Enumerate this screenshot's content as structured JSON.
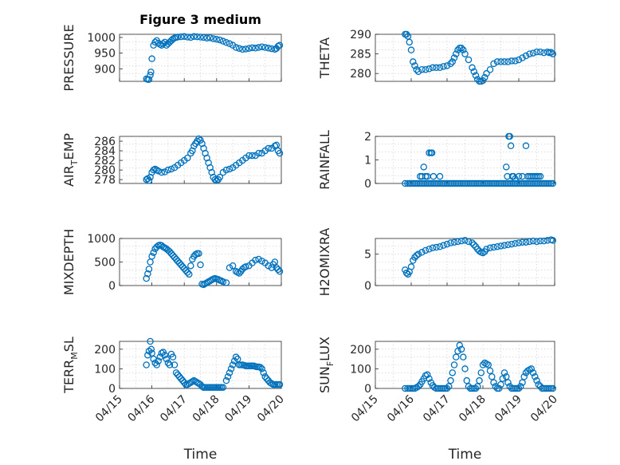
{
  "chart_data": [
    {
      "id": "pressure",
      "type": "scatter",
      "title": "Figure 3 medium",
      "ylabel": {
        "main": "PRESSURE",
        "sub": "",
        "tail": ""
      },
      "ylim": [
        860,
        1010
      ],
      "yticks": [
        900,
        950,
        1000
      ],
      "yticklabels": [
        "900",
        "950",
        "1000"
      ],
      "xlim": [
        0,
        5
      ],
      "xticklabels": [],
      "x": [
        0.83,
        0.87,
        0.91,
        0.95,
        0.97,
        1.0,
        1.05,
        1.1,
        1.15,
        1.2,
        1.25,
        1.3,
        1.35,
        1.4,
        1.45,
        1.5,
        1.55,
        1.6,
        1.65,
        1.7,
        1.75,
        1.8,
        1.9,
        2.0,
        2.1,
        2.2,
        2.3,
        2.4,
        2.5,
        2.6,
        2.7,
        2.8,
        2.9,
        3.0,
        3.1,
        3.2,
        3.3,
        3.4,
        3.5,
        3.6,
        3.7,
        3.8,
        3.9,
        4.0,
        4.1,
        4.2,
        4.3,
        4.4,
        4.5,
        4.6,
        4.7,
        4.8,
        4.85,
        4.9,
        4.95
      ],
      "y": [
        868,
        866,
        866,
        880,
        890,
        932,
        975,
        985,
        990,
        982,
        978,
        975,
        980,
        985,
        975,
        980,
        985,
        990,
        995,
        998,
        1000,
        1001,
        1002,
        1003,
        1001,
        1000,
        1003,
        1002,
        1001,
        1000,
        998,
        999,
        996,
        994,
        992,
        988,
        984,
        980,
        975,
        968,
        965,
        962,
        963,
        965,
        967,
        966,
        968,
        970,
        968,
        966,
        964,
        962,
        965,
        972,
        975
      ]
    },
    {
      "id": "theta",
      "type": "scatter",
      "title": "",
      "ylabel": {
        "main": "THETA",
        "sub": "",
        "tail": ""
      },
      "ylim": [
        278,
        290
      ],
      "yticks": [
        280,
        285,
        290
      ],
      "yticklabels": [
        "280",
        "285",
        "290"
      ],
      "xlim": [
        0,
        5
      ],
      "xticklabels": [],
      "x": [
        0.83,
        0.87,
        0.91,
        0.95,
        1.0,
        1.05,
        1.1,
        1.15,
        1.2,
        1.3,
        1.4,
        1.5,
        1.6,
        1.7,
        1.8,
        1.9,
        2.0,
        2.1,
        2.15,
        2.2,
        2.25,
        2.3,
        2.35,
        2.4,
        2.45,
        2.5,
        2.6,
        2.7,
        2.75,
        2.8,
        2.85,
        2.9,
        2.95,
        3.0,
        3.05,
        3.1,
        3.2,
        3.3,
        3.4,
        3.5,
        3.6,
        3.7,
        3.8,
        3.9,
        4.0,
        4.1,
        4.2,
        4.3,
        4.4,
        4.5,
        4.6,
        4.7,
        4.8,
        4.85,
        4.9,
        4.95
      ],
      "y": [
        290,
        290,
        289.5,
        288,
        286,
        283,
        282,
        281,
        280.5,
        281,
        281,
        281.2,
        281.5,
        281.5,
        281.5,
        281.8,
        282,
        282.5,
        283,
        284,
        285,
        286,
        286.5,
        286.5,
        286,
        285,
        283.5,
        281.5,
        280.5,
        279.5,
        278.5,
        278,
        278,
        278.2,
        279,
        280,
        281,
        282.5,
        283,
        283,
        283,
        283,
        283.2,
        283.2,
        283.5,
        284,
        284.5,
        285,
        285.2,
        285.5,
        285.5,
        285.3,
        285.5,
        285.3,
        285.4,
        285
      ]
    },
    {
      "id": "airtemp",
      "type": "scatter",
      "title": "",
      "ylabel": {
        "main": "AIR",
        "sub": "T",
        "tail": "EMP"
      },
      "ylim": [
        277.2,
        287
      ],
      "yticks": [
        278,
        280,
        282,
        284,
        286
      ],
      "yticklabels": [
        "278",
        "280",
        "282",
        "284",
        "286"
      ],
      "xlim": [
        0,
        5
      ],
      "xticklabels": [],
      "x": [
        0.83,
        0.87,
        0.91,
        0.95,
        1.0,
        1.05,
        1.1,
        1.15,
        1.2,
        1.3,
        1.4,
        1.5,
        1.6,
        1.7,
        1.8,
        1.9,
        2.0,
        2.1,
        2.2,
        2.25,
        2.3,
        2.35,
        2.4,
        2.45,
        2.5,
        2.55,
        2.6,
        2.65,
        2.7,
        2.75,
        2.8,
        2.85,
        2.9,
        2.95,
        3.0,
        3.05,
        3.1,
        3.2,
        3.3,
        3.4,
        3.5,
        3.6,
        3.7,
        3.8,
        3.9,
        4.0,
        4.1,
        4.2,
        4.3,
        4.4,
        4.5,
        4.6,
        4.7,
        4.8,
        4.85,
        4.9,
        4.95
      ],
      "y": [
        278,
        278.2,
        277.8,
        278.5,
        279.5,
        280,
        280.2,
        280,
        279.8,
        279.5,
        279.6,
        280,
        280.2,
        280.5,
        281,
        281.5,
        282,
        282.5,
        283.5,
        284,
        285,
        285.5,
        286,
        286.5,
        286.2,
        285.5,
        284.5,
        283.5,
        282.5,
        281.5,
        280.5,
        279.5,
        278.5,
        278,
        277.8,
        278,
        278.5,
        279.5,
        280,
        280.2,
        280.5,
        281,
        281.5,
        282,
        282.5,
        283,
        283,
        283,
        283.5,
        283.5,
        284,
        284.5,
        284.5,
        285,
        285.2,
        284,
        283.5
      ]
    },
    {
      "id": "rainfall",
      "type": "scatter",
      "title": "",
      "ylabel": {
        "main": "RAINFALL",
        "sub": "",
        "tail": ""
      },
      "ylim": [
        0,
        2
      ],
      "yticks": [
        0,
        1,
        2
      ],
      "yticklabels": [
        "0",
        "1",
        "2"
      ],
      "xlim": [
        0,
        5
      ],
      "xticklabels": [],
      "x": [
        0.83,
        0.9,
        0.95,
        1.0,
        1.05,
        1.1,
        1.15,
        1.2,
        1.25,
        1.3,
        1.35,
        1.4,
        1.45,
        1.5,
        1.55,
        1.6,
        1.65,
        1.7,
        1.75,
        1.8,
        1.85,
        1.9,
        1.95,
        2.0,
        2.05,
        2.1,
        2.15,
        2.2,
        2.25,
        2.3,
        2.35,
        2.4,
        2.45,
        2.5,
        2.55,
        2.6,
        2.65,
        2.7,
        2.75,
        2.8,
        2.85,
        2.9,
        2.95,
        3.0,
        3.05,
        3.1,
        3.15,
        3.2,
        3.25,
        3.3,
        3.35,
        3.4,
        3.45,
        3.5,
        3.55,
        3.6,
        3.65,
        3.7,
        3.75,
        3.8,
        3.85,
        3.9,
        3.95,
        4.0,
        4.05,
        4.1,
        4.15,
        4.2,
        4.25,
        4.3,
        4.35,
        4.4,
        4.45,
        4.5,
        4.55,
        4.6,
        4.65,
        4.7,
        4.75,
        4.8,
        4.85,
        4.9,
        4.95,
        1.25,
        1.3,
        1.35,
        1.4,
        1.45,
        1.5,
        1.55,
        1.58,
        1.62,
        1.8,
        3.65,
        3.68,
        3.72,
        3.75,
        3.78,
        3.82,
        3.85,
        3.9,
        4.0,
        4.1,
        4.2,
        4.25,
        4.3,
        4.35,
        4.4,
        4.45,
        4.5,
        4.55,
        4.6
      ],
      "y": [
        0,
        0,
        0,
        0,
        0,
        0,
        0,
        0,
        0,
        0,
        0,
        0,
        0,
        0,
        0,
        0,
        0,
        0,
        0,
        0,
        0,
        0,
        0,
        0,
        0,
        0,
        0,
        0,
        0,
        0,
        0,
        0,
        0,
        0,
        0,
        0,
        0,
        0,
        0,
        0,
        0,
        0,
        0,
        0,
        0,
        0,
        0,
        0,
        0,
        0,
        0,
        0,
        0,
        0,
        0,
        0,
        0,
        0,
        0,
        0,
        0,
        0,
        0,
        0,
        0,
        0,
        0,
        0,
        0,
        0,
        0,
        0,
        0,
        0,
        0,
        0,
        0,
        0,
        0,
        0,
        0,
        0,
        0,
        0.3,
        0.3,
        0.7,
        0.3,
        0.3,
        1.3,
        1.3,
        1.3,
        0.3,
        0.3,
        0.7,
        0.3,
        2,
        2,
        1.6,
        0.3,
        0.3,
        0.2,
        0.3,
        0.3,
        1.6,
        0.3,
        0.3,
        0.3,
        0.3,
        0.3,
        0.3,
        0.3,
        0.3
      ]
    },
    {
      "id": "mixdepth",
      "type": "scatter",
      "title": "",
      "ylabel": {
        "main": "MIXDEPTH",
        "sub": "",
        "tail": ""
      },
      "ylim": [
        0,
        1000
      ],
      "yticks": [
        0,
        500,
        1000
      ],
      "yticklabels": [
        "0",
        "500",
        "1000"
      ],
      "xlim": [
        0,
        5
      ],
      "xticklabels": [],
      "x": [
        0.83,
        0.87,
        0.91,
        0.95,
        1.0,
        1.05,
        1.1,
        1.15,
        1.2,
        1.25,
        1.3,
        1.35,
        1.4,
        1.45,
        1.5,
        1.55,
        1.6,
        1.65,
        1.7,
        1.75,
        1.8,
        1.85,
        1.9,
        1.95,
        2.0,
        2.05,
        2.1,
        2.15,
        2.2,
        2.25,
        2.3,
        2.35,
        2.4,
        2.45,
        2.5,
        2.55,
        2.6,
        2.65,
        2.7,
        2.75,
        2.8,
        2.85,
        2.9,
        2.95,
        3.0,
        3.05,
        3.1,
        3.15,
        3.2,
        3.3,
        3.4,
        3.5,
        3.6,
        3.65,
        3.7,
        3.75,
        3.8,
        3.85,
        3.9,
        4.0,
        4.1,
        4.2,
        4.3,
        4.4,
        4.5,
        4.6,
        4.7,
        4.75,
        4.8,
        4.85,
        4.9,
        4.95
      ],
      "y": [
        150,
        250,
        350,
        500,
        620,
        700,
        780,
        820,
        850,
        860,
        850,
        820,
        800,
        780,
        750,
        720,
        680,
        640,
        600,
        560,
        520,
        480,
        440,
        400,
        360,
        320,
        280,
        240,
        420,
        560,
        620,
        660,
        680,
        680,
        440,
        30,
        20,
        40,
        60,
        80,
        100,
        120,
        140,
        150,
        140,
        130,
        110,
        100,
        80,
        60,
        380,
        420,
        300,
        280,
        260,
        300,
        350,
        380,
        400,
        420,
        480,
        540,
        560,
        520,
        480,
        420,
        380,
        450,
        500,
        380,
        340,
        300
      ]
    },
    {
      "id": "h2omixra",
      "type": "scatter",
      "title": "",
      "ylabel": {
        "main": "H2OMIXRA",
        "sub": "",
        "tail": ""
      },
      "ylim": [
        0,
        7.5
      ],
      "yticks": [
        0,
        5
      ],
      "yticklabels": [
        "0",
        "5"
      ],
      "xlim": [
        0,
        5
      ],
      "xticklabels": [],
      "x": [
        0.83,
        0.87,
        0.91,
        0.95,
        1.0,
        1.05,
        1.1,
        1.15,
        1.2,
        1.3,
        1.4,
        1.5,
        1.6,
        1.7,
        1.8,
        1.9,
        2.0,
        2.1,
        2.2,
        2.3,
        2.4,
        2.5,
        2.6,
        2.7,
        2.75,
        2.8,
        2.85,
        2.9,
        2.95,
        3.0,
        3.05,
        3.1,
        3.2,
        3.3,
        3.4,
        3.5,
        3.6,
        3.7,
        3.8,
        3.9,
        4.0,
        4.1,
        4.2,
        4.3,
        4.4,
        4.5,
        4.6,
        4.7,
        4.8,
        4.9,
        4.95
      ],
      "y": [
        2.5,
        2,
        1.8,
        2.2,
        3,
        4,
        4.5,
        4.8,
        5,
        5.3,
        5.6,
        5.8,
        6,
        6.1,
        6.2,
        6.4,
        6.6,
        6.8,
        6.9,
        7,
        7.1,
        7.2,
        7,
        6.8,
        6.5,
        6.2,
        5.8,
        5.5,
        5.3,
        5.2,
        5.4,
        5.8,
        6,
        6.1,
        6.2,
        6.3,
        6.4,
        6.5,
        6.6,
        6.7,
        6.8,
        6.9,
        6.9,
        7,
        7.1,
        7,
        7.1,
        7.1,
        7.2,
        7.3,
        7.2
      ]
    },
    {
      "id": "terrmsl",
      "type": "scatter",
      "title": "",
      "ylabel": {
        "main": "TERR",
        "sub": "M",
        "tail": "SL"
      },
      "ylim": [
        0,
        240
      ],
      "yticks": [
        0,
        100,
        200
      ],
      "yticklabels": [
        "0",
        "100",
        "200"
      ],
      "xlim": [
        0,
        5
      ],
      "xticklabels": [
        "04/15",
        "04/16",
        "04/17",
        "04/18",
        "04/19",
        "04/20"
      ],
      "xlabel": "Time",
      "x": [
        0.83,
        0.87,
        0.91,
        0.95,
        0.98,
        1.0,
        1.05,
        1.1,
        1.15,
        1.2,
        1.25,
        1.3,
        1.35,
        1.4,
        1.45,
        1.5,
        1.55,
        1.6,
        1.65,
        1.7,
        1.75,
        1.8,
        1.85,
        1.9,
        1.95,
        2.0,
        2.05,
        2.1,
        2.15,
        2.2,
        2.25,
        2.3,
        2.35,
        2.4,
        2.45,
        2.5,
        2.55,
        2.6,
        2.65,
        2.7,
        2.75,
        2.8,
        2.85,
        2.9,
        2.95,
        3.0,
        3.05,
        3.1,
        3.15,
        3.2,
        3.3,
        3.35,
        3.4,
        3.45,
        3.5,
        3.55,
        3.6,
        3.65,
        3.7,
        3.75,
        3.8,
        3.85,
        3.9,
        3.95,
        4.0,
        4.05,
        4.1,
        4.15,
        4.2,
        4.25,
        4.3,
        4.35,
        4.4,
        4.45,
        4.5,
        4.55,
        4.6,
        4.65,
        4.7,
        4.75,
        4.8,
        4.85,
        4.9,
        4.95
      ],
      "y": [
        120,
        170,
        190,
        240,
        200,
        180,
        150,
        130,
        120,
        140,
        160,
        180,
        185,
        170,
        150,
        130,
        120,
        175,
        160,
        120,
        80,
        70,
        60,
        50,
        40,
        30,
        20,
        20,
        25,
        30,
        35,
        40,
        35,
        30,
        25,
        20,
        10,
        5,
        5,
        5,
        5,
        5,
        5,
        5,
        5,
        5,
        5,
        5,
        5,
        5,
        40,
        60,
        80,
        100,
        120,
        140,
        160,
        150,
        120,
        120,
        120,
        118,
        115,
        115,
        115,
        115,
        115,
        115,
        112,
        110,
        110,
        108,
        100,
        80,
        60,
        50,
        40,
        30,
        25,
        20,
        20,
        20,
        20,
        20
      ]
    },
    {
      "id": "sunflux",
      "type": "scatter",
      "title": "",
      "ylabel": {
        "main": "SUN",
        "sub": "F",
        "tail": "LUX"
      },
      "ylim": [
        0,
        240
      ],
      "yticks": [
        0,
        100,
        200
      ],
      "yticklabels": [
        "0",
        "100",
        "200"
      ],
      "xlim": [
        0,
        5
      ],
      "xticklabels": [
        "04/15",
        "04/16",
        "04/17",
        "04/18",
        "04/19",
        "04/20"
      ],
      "xlabel": "Time",
      "x": [
        0.83,
        0.9,
        0.95,
        1.0,
        1.05,
        1.1,
        1.15,
        1.2,
        1.25,
        1.3,
        1.35,
        1.4,
        1.45,
        1.5,
        1.55,
        1.6,
        1.65,
        1.7,
        1.75,
        1.8,
        1.85,
        1.9,
        1.95,
        2.0,
        2.05,
        2.1,
        2.15,
        2.2,
        2.25,
        2.3,
        2.35,
        2.4,
        2.45,
        2.5,
        2.55,
        2.6,
        2.65,
        2.7,
        2.75,
        2.8,
        2.85,
        2.9,
        2.95,
        3.0,
        3.05,
        3.1,
        3.15,
        3.2,
        3.25,
        3.3,
        3.35,
        3.4,
        3.45,
        3.5,
        3.55,
        3.6,
        3.65,
        3.7,
        3.75,
        3.8,
        3.85,
        3.9,
        3.95,
        4.0,
        4.05,
        4.1,
        4.15,
        4.2,
        4.25,
        4.3,
        4.35,
        4.4,
        4.45,
        4.5,
        4.55,
        4.6,
        4.65,
        4.7,
        4.75,
        4.8,
        4.85,
        4.9,
        4.95
      ],
      "y": [
        0,
        0,
        0,
        0,
        0,
        0,
        5,
        10,
        20,
        35,
        50,
        65,
        70,
        50,
        30,
        15,
        5,
        0,
        0,
        0,
        0,
        0,
        0,
        0,
        10,
        40,
        80,
        120,
        160,
        190,
        220,
        200,
        160,
        100,
        40,
        10,
        0,
        0,
        0,
        0,
        10,
        40,
        80,
        120,
        130,
        125,
        120,
        90,
        60,
        30,
        10,
        0,
        0,
        20,
        50,
        80,
        60,
        30,
        10,
        0,
        0,
        0,
        0,
        0,
        10,
        30,
        60,
        80,
        90,
        95,
        100,
        80,
        60,
        40,
        20,
        10,
        0,
        0,
        0,
        0,
        0,
        0,
        0
      ]
    }
  ]
}
